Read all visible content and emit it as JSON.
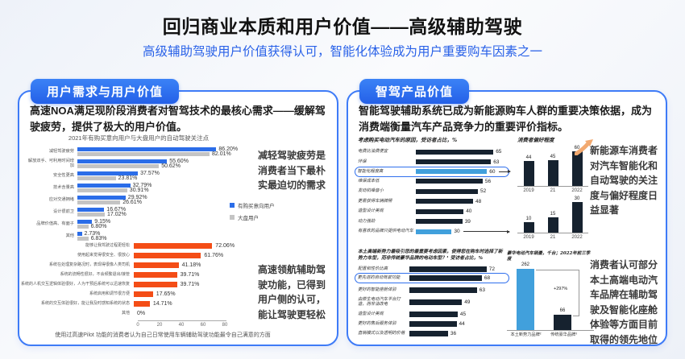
{
  "page": {
    "title": "回归商业本质和用户价值——高级辅助驾驶",
    "subtitle": "高级辅助驾驶用户价值获得认可，智能化体验成为用户重要购车因素之一"
  },
  "colors": {
    "accent_blue": "#2563EB",
    "panel_border": "#3E7BF7",
    "bar_blue": "#2B6DE8",
    "bar_gray": "#C4C4C4",
    "bar_orange": "#F44D16",
    "bar_navy": "#16222F",
    "bar_lightblue": "#41A0DC",
    "growth_arrow_orange": "#F2A96F"
  },
  "left_panel": {
    "badge": "用户需求与用户价值",
    "intro": "高速NOA满足现阶段消费者对智驾技术的最核心需求——缓解驾驶疲劳，提供了极大的用户价值。",
    "note_top": "减轻驾驶疲劳是消费者当下最朴实最迫切的需求",
    "note_bottom": "高速领航辅助驾驶功能，已得到用户侧的认可，能让驾驶更轻松",
    "caption": "使用过高速Pilot 功能的消费者认为自己日常使用车辆辅助驾驶功能最令自己满意的方面"
  },
  "right_panel": {
    "badge": "智驾产品价值",
    "intro": "智能驾驶辅助系统已成为新能源购车人群的重要决策依据，成为消费端衡量汽车产品竞争力的重要评价指标。",
    "note_top": "新能源车消费者对汽车智能化和自动驾驶的关注度与偏好程度日益显著",
    "note_bottom": "消费者认可部分本土高端电动汽车品牌在辅助驾驶及智能化座舱体验等方面目前取得的领先地位"
  },
  "chart_data": [
    {
      "id": "autodrive-attention-2021",
      "type": "bar",
      "orientation": "horizontal",
      "title": "2021年有购买意向用户与大盘用户的自动驾驶关注点",
      "categories": [
        "减轻驾驶疲劳",
        "解放双手、可利用时间增加",
        "安全性更高",
        "技术含量高",
        "应对交通拥堵",
        "设计很前卫",
        "品牌价值高、有面子",
        "其他"
      ],
      "series": [
        {
          "name": "有购买意向用户",
          "color": "#2B6DE8",
          "values": [
            86.2,
            55.6,
            37.57,
            32.79,
            29.92,
            16.67,
            9.15,
            2.73
          ]
        },
        {
          "name": "大盘用户",
          "color": "#C4C4C4",
          "values": [
            82.01,
            50.62,
            23.81,
            30.91,
            26.61,
            17.02,
            6.8,
            6.83
          ]
        }
      ],
      "value_suffix": "%",
      "xlim": [
        0,
        100
      ],
      "grid": false,
      "legend_position": "right"
    },
    {
      "id": "pilot-satisfaction",
      "type": "bar",
      "orientation": "horizontal",
      "categories": [
        "能够让我驾驶过程更轻松",
        "使用起来觉得很安全、很放心",
        "系统在处理复杂路况时，表现得很像人类司机",
        "系统的流畅性很好，不会频繁退出/接管",
        "系统的人机交互逻辑体验很好，人为干预后系统可以迅速恢复",
        "系统启用和调节很方便",
        "系统的交互体验很好，能让我及时感知系统的状态",
        "其他"
      ],
      "values": [
        72.06,
        61.76,
        41.18,
        39.71,
        39.71,
        17.65,
        14.71,
        0
      ],
      "color": "#F44D16",
      "value_suffix": "%",
      "x_ticks": [
        0,
        20,
        40,
        60,
        80
      ],
      "xlim": [
        0,
        80
      ],
      "grid": false
    },
    {
      "id": "ev-purchase-reasons",
      "type": "bar",
      "orientation": "horizontal",
      "title": "考虑购买电动汽车的原因，受访者占比，%",
      "categories": [
        "电费比油费便宜",
        "环保",
        "智能化程度高",
        "维保成本低",
        "发动机噪音小",
        "更易获得车辆牌照",
        "造型设计美观",
        "动力强劲",
        "有喜欢的品牌只提供电动汽车"
      ],
      "values": [
        65,
        63,
        60,
        56,
        52,
        48,
        40,
        39,
        30
      ],
      "highlight_box_index": 2,
      "highlight_blue_indices": [
        2,
        8
      ],
      "arrow_indices": [
        2,
        8
      ],
      "xlim": [
        0,
        70
      ],
      "grid": false,
      "preference": {
        "title": "消费者偏好程度",
        "mini_charts": [
          {
            "type": "bar",
            "categories": [
              "2019",
              "21",
              "2022"
            ],
            "values": [
              44,
              45,
              60
            ]
          },
          {
            "type": "bar",
            "categories": [
              "2019",
              "21",
              "2022"
            ],
            "values": [
              10,
              15,
              30
            ]
          }
        ]
      }
    },
    {
      "id": "nev-startup-attraction",
      "type": "bar",
      "orientation": "horizontal",
      "title": "本土高端新势力最吸引您的最重要考虑因素，使得您在购车时选择了新势力车型，而非传统豪华品牌的电动车型？¹ 受访者占比，%",
      "categories": [
        "配置和性价比高",
        "更先进的自动驾驶功能",
        "更好的智能座舱体验",
        "由原生电动汽车平台打造，而非油改电",
        "造型设计美观",
        "更好的售后服务体验",
        "直销模式以及透明的价格"
      ],
      "values": [
        72,
        68,
        63,
        49,
        45,
        44,
        36
      ],
      "highlight_box_index": 1,
      "xlim": [
        0,
        80
      ],
      "grid": false,
      "sales_chart": {
        "type": "bar",
        "title": "豪华电动汽车销量，千台；2022年前三季度",
        "categories": [
          "本土新势力品牌²",
          "传统豪华品牌³"
        ],
        "values": [
          262,
          66
        ],
        "colors": [
          "#41A0DC",
          "#16222F"
        ],
        "delta_label": "+297%"
      }
    }
  ]
}
